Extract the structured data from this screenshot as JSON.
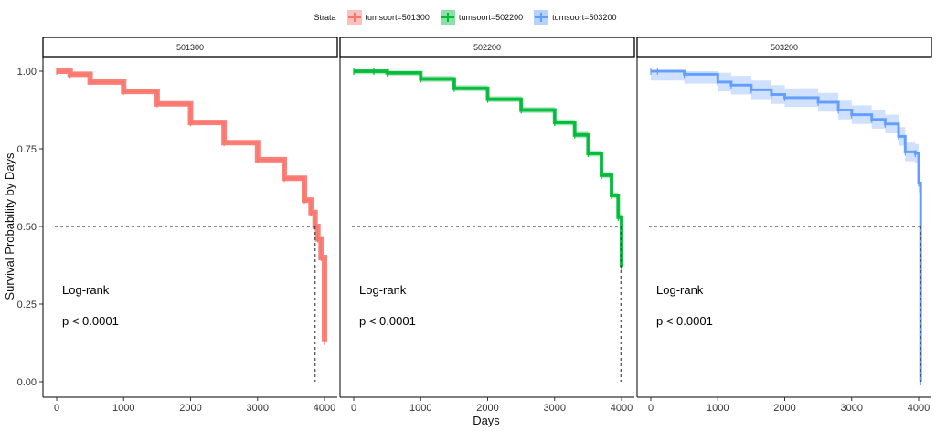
{
  "legend": {
    "title": "Strata",
    "entries": [
      {
        "label": "tumsoort=501300",
        "color": "#F8766D"
      },
      {
        "label": "tumsoort=502200",
        "color": "#00BA38"
      },
      {
        "label": "tumsoort=503200",
        "color": "#619CFF"
      }
    ]
  },
  "chart_data": {
    "type": "line",
    "ylabel": "Survival Probability by Days",
    "xlabel": "Days",
    "xlim": [
      0,
      4000
    ],
    "ylim": [
      0,
      1
    ],
    "x_ticks": [
      0,
      1000,
      2000,
      3000,
      4000
    ],
    "y_ticks": [
      0.0,
      0.25,
      0.5,
      0.75,
      1.0
    ],
    "y_tick_labels": [
      "0.00",
      "0.25",
      "0.50",
      "0.75",
      "1.00"
    ],
    "x_tick_labels": [
      "0",
      "1000",
      "2000",
      "3000",
      "4000"
    ],
    "median_reference_y": 0.5,
    "grid": false,
    "legend_position": "top",
    "panels": [
      {
        "strip_label": "501300",
        "series_name": "tumsoort=501300",
        "color": "#F8766D",
        "annotation_line1": "Log-rank",
        "annotation_line2": "p < 0.0001",
        "median_days": 3860,
        "x": [
          0,
          200,
          500,
          1000,
          1500,
          2000,
          2500,
          3000,
          3400,
          3700,
          3800,
          3860,
          3900,
          3950,
          4000
        ],
        "y": [
          1.0,
          0.99,
          0.965,
          0.935,
          0.895,
          0.835,
          0.77,
          0.715,
          0.655,
          0.585,
          0.545,
          0.5,
          0.46,
          0.4,
          0.13
        ],
        "ci_halfwidth": 0.008
      },
      {
        "strip_label": "502200",
        "series_name": "tumsoort=502200",
        "color": "#00BA38",
        "annotation_line1": "Log-rank",
        "annotation_line2": "p < 0.0001",
        "median_days": 3990,
        "x": [
          0,
          300,
          500,
          1000,
          1500,
          2000,
          2500,
          3000,
          3300,
          3500,
          3700,
          3850,
          3950,
          4000
        ],
        "y": [
          1.0,
          1.0,
          0.995,
          0.975,
          0.945,
          0.91,
          0.875,
          0.835,
          0.795,
          0.735,
          0.665,
          0.6,
          0.53,
          0.37
        ],
        "ci_halfwidth": 0.01
      },
      {
        "strip_label": "503200",
        "series_name": "tumsoort=503200",
        "color": "#619CFF",
        "annotation_line1": "Log-rank",
        "annotation_line2": "p < 0.0001",
        "median_days": 4030,
        "x": [
          0,
          100,
          500,
          1000,
          1200,
          1500,
          1800,
          2000,
          2500,
          2800,
          3000,
          3300,
          3500,
          3700,
          3800,
          3950,
          4000,
          4030
        ],
        "y": [
          1.0,
          1.0,
          0.99,
          0.965,
          0.955,
          0.94,
          0.925,
          0.915,
          0.9,
          0.875,
          0.86,
          0.845,
          0.83,
          0.79,
          0.74,
          0.735,
          0.64,
          0.0
        ],
        "ci_halfwidth": 0.03
      }
    ]
  }
}
